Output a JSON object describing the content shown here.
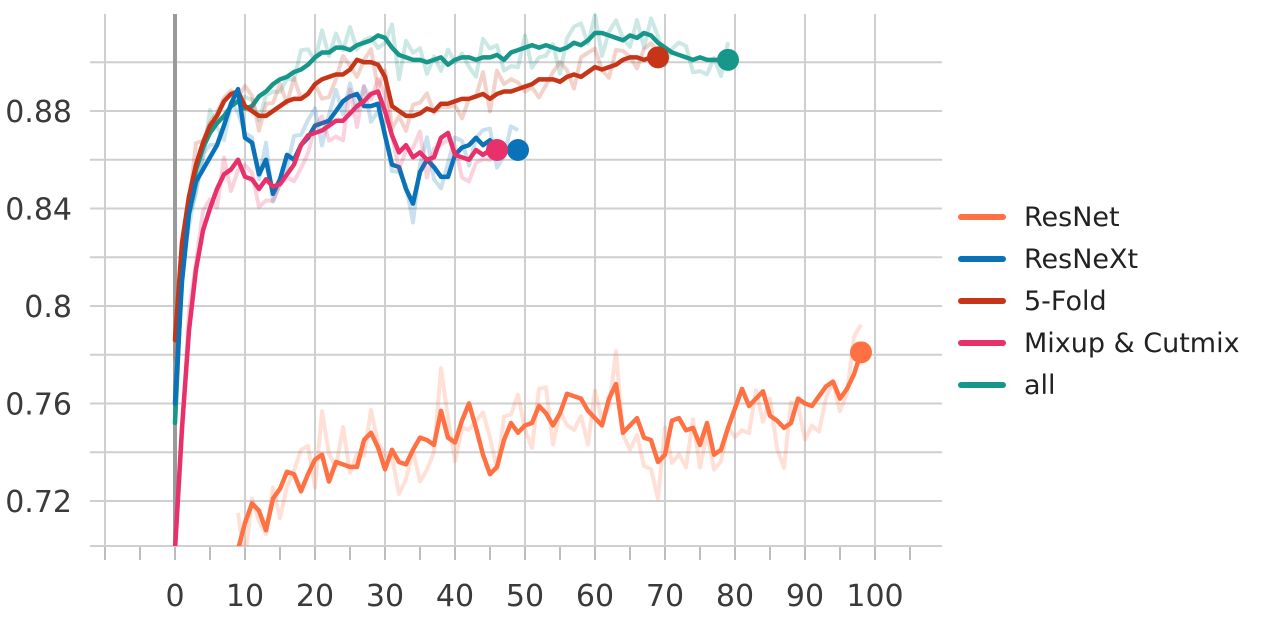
{
  "chart_data": {
    "type": "line",
    "title": "",
    "xlabel": "",
    "ylabel": "",
    "xlim": [
      -10,
      110
    ],
    "ylim": [
      0.7,
      0.92
    ],
    "x_ticks": [
      0,
      10,
      20,
      30,
      40,
      50,
      60,
      70,
      80,
      90,
      100
    ],
    "y_ticks": [
      0.72,
      0.76,
      0.8,
      0.84,
      0.88
    ],
    "y_tick_labels": [
      "0.72",
      "0.76",
      "0.8",
      "0.84",
      "0.88"
    ],
    "grid": true,
    "legend_position": "right",
    "series": [
      {
        "name": "ResNet",
        "color": "#ff7043",
        "x": [
          9,
          10,
          11,
          12,
          13,
          14,
          15,
          16,
          17,
          18,
          19,
          20,
          21,
          22,
          23,
          24,
          25,
          26,
          27,
          28,
          29,
          30,
          31,
          32,
          33,
          34,
          35,
          36,
          37,
          38,
          39,
          40,
          41,
          42,
          43,
          44,
          45,
          46,
          47,
          48,
          49,
          50,
          51,
          52,
          53,
          54,
          55,
          56,
          57,
          58,
          59,
          60,
          61,
          62,
          63,
          64,
          65,
          66,
          67,
          68,
          69,
          70,
          71,
          72,
          73,
          74,
          75,
          76,
          77,
          78,
          79,
          80,
          81,
          82,
          83,
          84,
          85,
          86,
          87,
          88,
          89,
          90,
          91,
          92,
          93,
          94,
          95,
          96,
          97,
          98
        ],
        "y": [
          0.7,
          0.711,
          0.719,
          0.716,
          0.708,
          0.721,
          0.725,
          0.732,
          0.731,
          0.724,
          0.731,
          0.737,
          0.739,
          0.728,
          0.736,
          0.735,
          0.734,
          0.734,
          0.745,
          0.748,
          0.742,
          0.733,
          0.741,
          0.736,
          0.735,
          0.741,
          0.746,
          0.745,
          0.743,
          0.757,
          0.746,
          0.744,
          0.753,
          0.76,
          0.75,
          0.739,
          0.731,
          0.734,
          0.745,
          0.752,
          0.748,
          0.751,
          0.752,
          0.759,
          0.756,
          0.751,
          0.756,
          0.764,
          0.763,
          0.762,
          0.757,
          0.754,
          0.751,
          0.762,
          0.768,
          0.748,
          0.751,
          0.754,
          0.746,
          0.745,
          0.736,
          0.739,
          0.753,
          0.754,
          0.749,
          0.75,
          0.743,
          0.752,
          0.739,
          0.741,
          0.75,
          0.758,
          0.766,
          0.759,
          0.762,
          0.765,
          0.755,
          0.753,
          0.75,
          0.752,
          0.762,
          0.76,
          0.759,
          0.763,
          0.767,
          0.769,
          0.762,
          0.766,
          0.772,
          0.781
        ]
      },
      {
        "name": "ResNeXt",
        "color": "#0a72b8",
        "x": [
          0,
          1,
          2,
          3,
          4,
          5,
          6,
          7,
          8,
          9,
          10,
          11,
          12,
          13,
          14,
          15,
          16,
          17,
          18,
          19,
          20,
          21,
          22,
          23,
          24,
          25,
          26,
          27,
          28,
          29,
          30,
          31,
          32,
          33,
          34,
          35,
          36,
          37,
          38,
          39,
          40,
          41,
          42,
          43,
          44,
          45,
          46,
          47,
          48,
          49
        ],
        "y": [
          0.76,
          0.81,
          0.838,
          0.851,
          0.856,
          0.861,
          0.866,
          0.874,
          0.883,
          0.889,
          0.869,
          0.867,
          0.854,
          0.86,
          0.846,
          0.852,
          0.862,
          0.86,
          0.866,
          0.869,
          0.874,
          0.875,
          0.876,
          0.88,
          0.884,
          0.886,
          0.887,
          0.882,
          0.882,
          0.883,
          0.87,
          0.858,
          0.857,
          0.848,
          0.842,
          0.855,
          0.86,
          0.857,
          0.853,
          0.853,
          0.862,
          0.865,
          0.866,
          0.869,
          0.866,
          0.868,
          0.865,
          0.863,
          0.864,
          0.864
        ]
      },
      {
        "name": "5-Fold",
        "color": "#c63518",
        "x": [
          0,
          1,
          2,
          3,
          4,
          5,
          6,
          7,
          8,
          9,
          10,
          11,
          12,
          13,
          14,
          15,
          16,
          17,
          18,
          19,
          20,
          21,
          22,
          23,
          24,
          25,
          26,
          27,
          28,
          29,
          30,
          31,
          32,
          33,
          34,
          35,
          36,
          37,
          38,
          39,
          40,
          41,
          42,
          43,
          44,
          45,
          46,
          47,
          48,
          49,
          50,
          51,
          52,
          53,
          54,
          55,
          56,
          57,
          58,
          59,
          60,
          61,
          62,
          63,
          64,
          65,
          66,
          67,
          68,
          69
        ],
        "y": [
          0.786,
          0.826,
          0.845,
          0.858,
          0.867,
          0.874,
          0.878,
          0.884,
          0.887,
          0.888,
          0.882,
          0.88,
          0.878,
          0.878,
          0.88,
          0.882,
          0.884,
          0.885,
          0.885,
          0.887,
          0.891,
          0.893,
          0.894,
          0.895,
          0.895,
          0.897,
          0.901,
          0.9,
          0.9,
          0.899,
          0.894,
          0.882,
          0.88,
          0.878,
          0.878,
          0.879,
          0.881,
          0.88,
          0.883,
          0.883,
          0.884,
          0.885,
          0.885,
          0.886,
          0.887,
          0.885,
          0.887,
          0.888,
          0.888,
          0.889,
          0.89,
          0.891,
          0.893,
          0.893,
          0.893,
          0.892,
          0.894,
          0.895,
          0.894,
          0.896,
          0.898,
          0.897,
          0.898,
          0.899,
          0.901,
          0.902,
          0.902,
          0.901,
          0.902,
          0.902
        ]
      },
      {
        "name": "Mixup & Cutmix",
        "color": "#e8306a",
        "x": [
          0,
          1,
          2,
          3,
          4,
          5,
          6,
          7,
          8,
          9,
          10,
          11,
          12,
          13,
          14,
          15,
          16,
          17,
          18,
          19,
          20,
          21,
          22,
          23,
          24,
          25,
          26,
          27,
          28,
          29,
          30,
          31,
          32,
          33,
          34,
          35,
          36,
          37,
          38,
          39,
          40,
          41,
          42,
          43,
          44,
          45,
          46
        ],
        "y": [
          0.7,
          0.75,
          0.79,
          0.815,
          0.831,
          0.84,
          0.848,
          0.854,
          0.856,
          0.86,
          0.853,
          0.852,
          0.848,
          0.852,
          0.849,
          0.85,
          0.854,
          0.858,
          0.866,
          0.87,
          0.871,
          0.872,
          0.874,
          0.876,
          0.876,
          0.879,
          0.882,
          0.884,
          0.887,
          0.888,
          0.88,
          0.87,
          0.863,
          0.866,
          0.861,
          0.863,
          0.86,
          0.861,
          0.869,
          0.871,
          0.862,
          0.861,
          0.86,
          0.864,
          0.862,
          0.864,
          0.864
        ]
      },
      {
        "name": "all",
        "color": "#17968a",
        "x": [
          0,
          1,
          2,
          3,
          4,
          5,
          6,
          7,
          8,
          9,
          10,
          11,
          12,
          13,
          14,
          15,
          16,
          17,
          18,
          19,
          20,
          21,
          22,
          23,
          24,
          25,
          26,
          27,
          28,
          29,
          30,
          31,
          32,
          33,
          34,
          35,
          36,
          37,
          38,
          39,
          40,
          41,
          42,
          43,
          44,
          45,
          46,
          47,
          48,
          49,
          50,
          51,
          52,
          53,
          54,
          55,
          56,
          57,
          58,
          59,
          60,
          61,
          62,
          63,
          64,
          65,
          66,
          67,
          68,
          69,
          70,
          71,
          72,
          73,
          74,
          75,
          76,
          77,
          78,
          79
        ],
        "y": [
          0.752,
          0.815,
          0.842,
          0.856,
          0.865,
          0.871,
          0.875,
          0.878,
          0.882,
          0.884,
          0.881,
          0.882,
          0.886,
          0.888,
          0.891,
          0.893,
          0.894,
          0.896,
          0.897,
          0.899,
          0.902,
          0.904,
          0.904,
          0.906,
          0.906,
          0.905,
          0.907,
          0.908,
          0.909,
          0.911,
          0.91,
          0.906,
          0.903,
          0.902,
          0.901,
          0.901,
          0.9,
          0.901,
          0.902,
          0.899,
          0.901,
          0.902,
          0.902,
          0.901,
          0.902,
          0.902,
          0.903,
          0.901,
          0.904,
          0.905,
          0.906,
          0.907,
          0.906,
          0.907,
          0.906,
          0.905,
          0.906,
          0.908,
          0.907,
          0.909,
          0.912,
          0.912,
          0.911,
          0.91,
          0.909,
          0.911,
          0.91,
          0.912,
          0.911,
          0.908,
          0.906,
          0.904,
          0.903,
          0.902,
          0.901,
          0.902,
          0.901,
          0.901,
          0.901,
          0.901
        ]
      }
    ]
  }
}
